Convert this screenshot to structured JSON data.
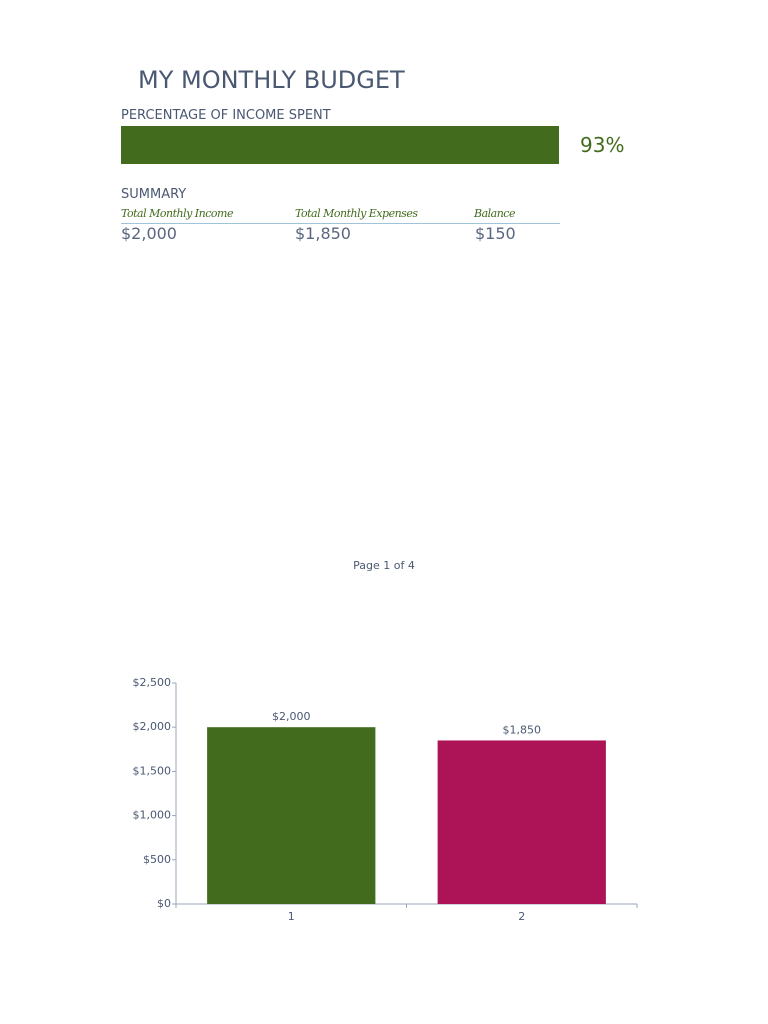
{
  "header": {
    "title": "MY MONTHLY BUDGET",
    "percent_heading": "PERCENTAGE OF INCOME SPENT",
    "percent": {
      "value": 93,
      "label": "93%"
    },
    "bar_color": "#436b1d"
  },
  "summary": {
    "heading": "SUMMARY",
    "columns": [
      "Total Monthly Income",
      "Total Monthly Expenses",
      "Balance"
    ],
    "values": [
      "$2,000",
      "$1,850",
      "$150"
    ]
  },
  "footer": "Page 1 of 4",
  "chart_data": {
    "type": "bar",
    "categories": [
      "1",
      "2"
    ],
    "values": [
      2000,
      1850
    ],
    "value_labels": [
      "$2,000",
      "$1,850"
    ],
    "colors": [
      "#436b1d",
      "#ad1457"
    ],
    "ylim": [
      0,
      2500
    ],
    "yticks": [
      {
        "value": 0,
        "label": "$0"
      },
      {
        "value": 500,
        "label": "$500"
      },
      {
        "value": 1000,
        "label": "$1,000"
      },
      {
        "value": 1500,
        "label": "$1,500"
      },
      {
        "value": 2000,
        "label": "$2,000"
      },
      {
        "value": 2500,
        "label": "$2,500"
      }
    ]
  }
}
